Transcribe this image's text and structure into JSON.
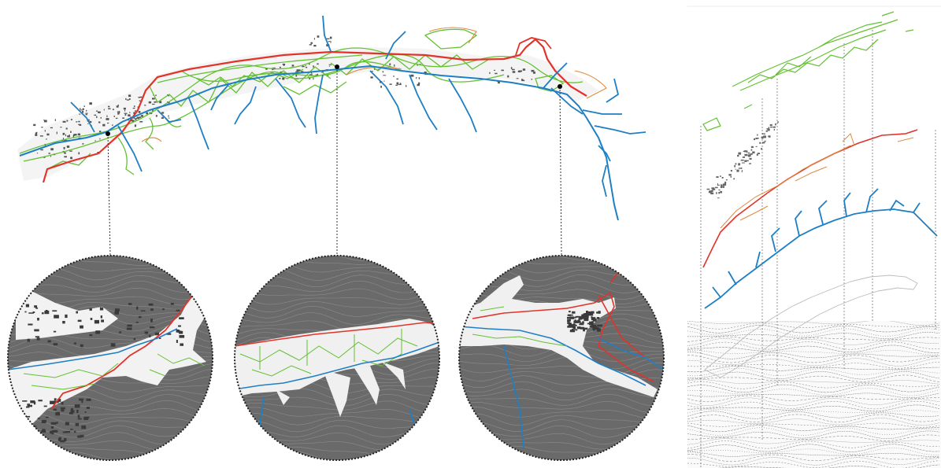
{
  "figure": {
    "title": "",
    "labels": []
  },
  "colors": {
    "green": "#63c132",
    "red": "#e2332a",
    "blue": "#1f7fc4",
    "orange": "#e08a3c",
    "dark": "#444444",
    "circle_fill": "#6a6a6a",
    "contour": "#8c8c8c"
  },
  "map": {
    "markers": [
      {
        "name": "marker-west",
        "color": "#000000"
      },
      {
        "name": "marker-center",
        "color": "#000000"
      },
      {
        "name": "marker-east",
        "color": "#000000"
      }
    ],
    "insets": [
      {
        "name": "inset-west",
        "content": "port-city"
      },
      {
        "name": "inset-center",
        "content": "valley"
      },
      {
        "name": "inset-east",
        "content": "gorge"
      }
    ]
  },
  "layers": [
    {
      "name": "layer-vegetation",
      "color": "#63c132"
    },
    {
      "name": "layer-buildings",
      "color": "#444444"
    },
    {
      "name": "layer-roads",
      "color": "#e2332a"
    },
    {
      "name": "layer-hydrography",
      "color": "#1f7fc4"
    },
    {
      "name": "layer-valley-outline",
      "color": "#bbbbbb"
    },
    {
      "name": "layer-terrain",
      "color": "#555555"
    }
  ]
}
